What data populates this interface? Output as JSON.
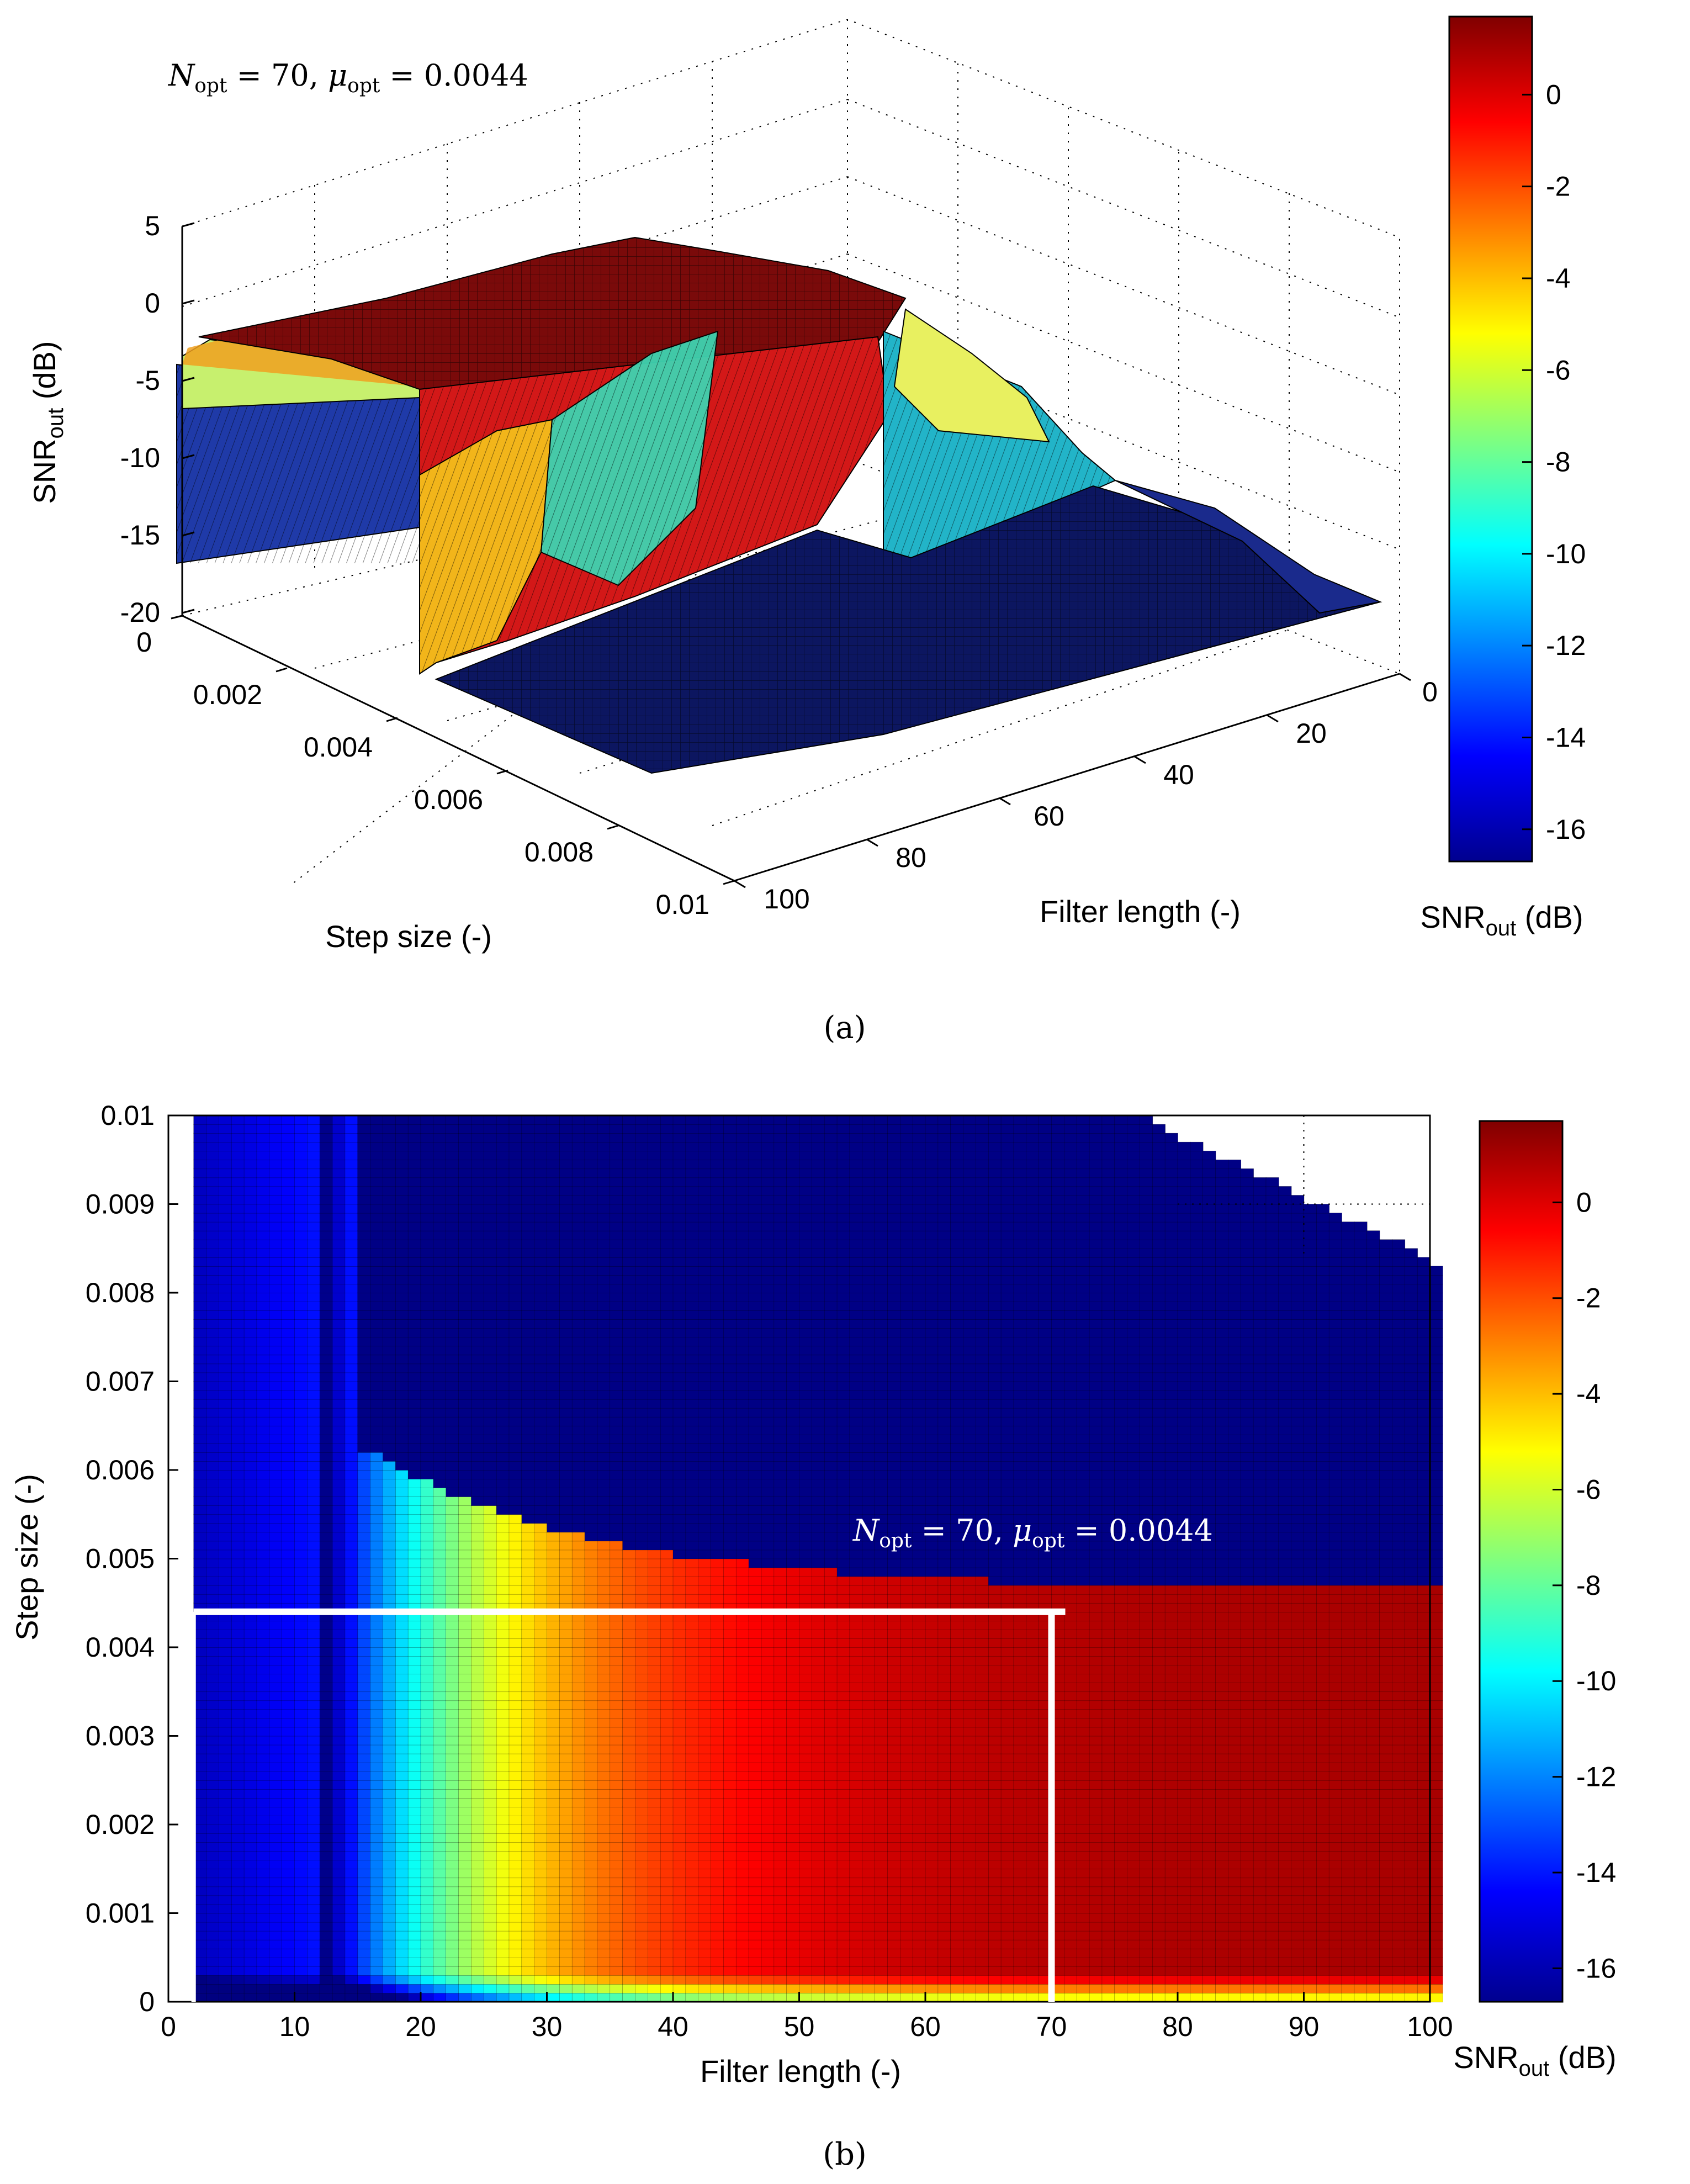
{
  "chart_data": [
    {
      "id": "a",
      "type": "surface3d",
      "caption": "(a)",
      "annotation": {
        "n_text": "N",
        "n_sub": "opt",
        "n_val": " = 70, ",
        "mu_text": "μ",
        "mu_sub": "opt",
        "mu_val": " = 0.0044"
      },
      "zlabel": {
        "main": "SNR",
        "sub": "out",
        "unit": " (dB)"
      },
      "ylabel": "Step size (-)",
      "xlabel": "Filter length (-)",
      "zticks": [
        "5",
        "0",
        "-5",
        "-10",
        "-15",
        "-20"
      ],
      "yticks": [
        "0",
        "0.002",
        "0.004",
        "0.006",
        "0.008",
        "0.01"
      ],
      "xticks": [
        "0",
        "20",
        "40",
        "60",
        "80",
        "100"
      ],
      "zlim": [
        -20,
        5
      ],
      "ylim": [
        0,
        0.01
      ],
      "xlim": [
        0,
        100
      ],
      "colorbar": {
        "ticks": [
          "0",
          "-2",
          "-4",
          "-6",
          "-8",
          "-10",
          "-12",
          "-14",
          "-16"
        ],
        "label_main": "SNR",
        "label_sub": "out",
        "label_unit": " (dB)",
        "range": [
          -16.7,
          1.7
        ]
      }
    },
    {
      "id": "b",
      "type": "heatmap",
      "caption": "(b)",
      "annotation": {
        "n_text": "N",
        "n_sub": "opt",
        "n_val": " = 70, ",
        "mu_text": "μ",
        "mu_sub": "opt",
        "mu_val": " = 0.0044"
      },
      "xlabel": "Filter length (-)",
      "ylabel": "Step size (-)",
      "xticks": [
        "0",
        "10",
        "20",
        "30",
        "40",
        "50",
        "60",
        "70",
        "80",
        "90",
        "100"
      ],
      "yticks": [
        "0.01",
        "0.009",
        "0.008",
        "0.007",
        "0.006",
        "0.005",
        "0.004",
        "0.003",
        "0.002",
        "0.001",
        "0"
      ],
      "xlim": [
        0,
        100
      ],
      "ylim": [
        0,
        0.01
      ],
      "optimum": {
        "filter_length": 70,
        "step_size": 0.0044
      },
      "colorbar": {
        "ticks": [
          "0",
          "-2",
          "-4",
          "-6",
          "-8",
          "-10",
          "-12",
          "-14",
          "-16"
        ],
        "label_main": "SNR",
        "label_sub": "out",
        "label_unit": " (dB)",
        "range": [
          -16.7,
          1.7
        ]
      }
    }
  ]
}
